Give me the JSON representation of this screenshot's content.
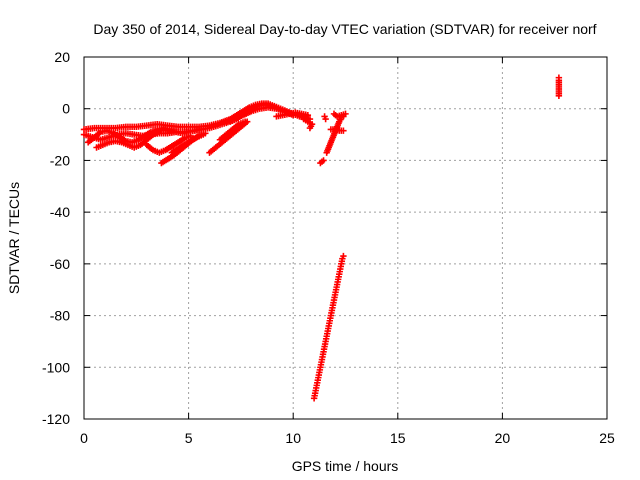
{
  "chart_data": {
    "type": "scatter",
    "title": "Day 350 of 2014, Sidereal Day-to-day VTEC variation (SDTVAR) for receiver norf",
    "xlabel": "GPS time / hours",
    "ylabel": "SDTVAR / TECUs",
    "xlim": [
      0,
      25
    ],
    "ylim": [
      -120,
      20
    ],
    "xticks": [
      "0",
      "5",
      "10",
      "15",
      "20",
      "25"
    ],
    "yticks": [
      "20",
      "0",
      "-20",
      "-40",
      "-60",
      "-80",
      "-100",
      "-120"
    ],
    "grid": true,
    "marker": "plus",
    "color": "#ff0000",
    "series": [
      {
        "segments": [
          [
            [
              0.0,
              -8
            ],
            [
              0.5,
              -7.5
            ],
            [
              1.0,
              -7.5
            ],
            [
              1.5,
              -7.5
            ],
            [
              2.0,
              -7
            ],
            [
              2.5,
              -7
            ],
            [
              3.0,
              -6.5
            ],
            [
              3.5,
              -6
            ],
            [
              4.0,
              -6.5
            ],
            [
              4.5,
              -7
            ],
            [
              5.0,
              -7
            ],
            [
              5.5,
              -7
            ],
            [
              6.0,
              -6.5
            ],
            [
              6.5,
              -5.5
            ],
            [
              7.0,
              -4
            ],
            [
              7.3,
              -2.5
            ],
            [
              7.6,
              -1
            ],
            [
              7.9,
              0.5
            ],
            [
              8.2,
              1.5
            ],
            [
              8.5,
              2
            ],
            [
              8.8,
              2
            ],
            [
              9.1,
              1
            ],
            [
              9.4,
              0
            ],
            [
              9.7,
              -1
            ],
            [
              10.0,
              -2
            ],
            [
              10.3,
              -2.5
            ],
            [
              10.6,
              -3
            ]
          ],
          [
            [
              0.0,
              -10
            ],
            [
              0.4,
              -11
            ],
            [
              0.8,
              -12
            ],
            [
              1.2,
              -11
            ],
            [
              1.6,
              -10
            ],
            [
              2.0,
              -9.5
            ],
            [
              2.4,
              -10
            ],
            [
              2.8,
              -10.5
            ],
            [
              3.2,
              -10
            ],
            [
              3.6,
              -9.5
            ],
            [
              4.0,
              -9.5
            ],
            [
              4.4,
              -9
            ],
            [
              4.8,
              -9
            ],
            [
              5.2,
              -8.5
            ],
            [
              5.6,
              -8
            ],
            [
              6.0,
              -7.5
            ],
            [
              6.4,
              -6.5
            ],
            [
              6.8,
              -5.5
            ],
            [
              7.2,
              -4
            ],
            [
              7.6,
              -2.5
            ],
            [
              8.0,
              -1
            ],
            [
              8.4,
              0
            ],
            [
              8.8,
              0.5
            ],
            [
              9.2,
              0
            ],
            [
              9.6,
              -1
            ],
            [
              10.0,
              -2.5
            ]
          ],
          [
            [
              0.2,
              -13
            ],
            [
              0.5,
              -11
            ],
            [
              0.8,
              -9
            ],
            [
              1.1,
              -8.5
            ],
            [
              1.4,
              -9.5
            ],
            [
              1.7,
              -11
            ],
            [
              2.0,
              -12.5
            ],
            [
              2.3,
              -13
            ],
            [
              2.6,
              -12
            ],
            [
              2.9,
              -10.5
            ],
            [
              3.2,
              -9
            ],
            [
              3.5,
              -8
            ],
            [
              3.8,
              -7.5
            ],
            [
              4.1,
              -8
            ],
            [
              4.4,
              -9
            ],
            [
              4.7,
              -9.5
            ],
            [
              5.0,
              -9
            ],
            [
              5.3,
              -8.5
            ],
            [
              5.6,
              -8
            ]
          ],
          [
            [
              0.6,
              -15
            ],
            [
              0.9,
              -14
            ],
            [
              1.2,
              -13
            ],
            [
              1.5,
              -12.5
            ],
            [
              1.8,
              -13
            ],
            [
              2.1,
              -14
            ],
            [
              2.4,
              -15
            ],
            [
              2.7,
              -14
            ],
            [
              3.0,
              -12
            ],
            [
              3.3,
              -10
            ],
            [
              3.6,
              -8.5
            ],
            [
              3.9,
              -8
            ],
            [
              4.2,
              -9
            ]
          ],
          [
            [
              3.7,
              -21
            ],
            [
              4.0,
              -19.5
            ],
            [
              4.3,
              -18
            ],
            [
              4.6,
              -16
            ],
            [
              4.9,
              -14
            ],
            [
              5.2,
              -12
            ],
            [
              5.5,
              -10.5
            ],
            [
              5.8,
              -9.5
            ]
          ],
          [
            [
              3.0,
              -14
            ],
            [
              3.3,
              -16
            ],
            [
              3.6,
              -17
            ],
            [
              3.9,
              -16
            ],
            [
              4.2,
              -14.5
            ],
            [
              4.5,
              -13
            ],
            [
              4.8,
              -11.5
            ],
            [
              5.1,
              -10.5
            ]
          ],
          [
            [
              4.2,
              -17
            ],
            [
              4.5,
              -15.5
            ],
            [
              4.8,
              -14
            ],
            [
              5.1,
              -12.5
            ],
            [
              5.4,
              -11
            ],
            [
              5.7,
              -10
            ]
          ],
          [
            [
              6.0,
              -17
            ],
            [
              6.3,
              -15
            ],
            [
              6.6,
              -13
            ],
            [
              6.9,
              -11
            ],
            [
              7.2,
              -9
            ],
            [
              7.5,
              -7
            ],
            [
              7.8,
              -5
            ]
          ],
          [
            [
              6.5,
              -12
            ],
            [
              6.8,
              -10
            ],
            [
              7.1,
              -8
            ],
            [
              7.4,
              -6
            ],
            [
              7.7,
              -5
            ]
          ],
          [
            [
              7.0,
              -5
            ],
            [
              7.3,
              -4
            ],
            [
              7.6,
              -2
            ],
            [
              7.9,
              -0.5
            ],
            [
              8.2,
              0.5
            ],
            [
              8.5,
              1.5
            ],
            [
              8.8,
              1.5
            ],
            [
              9.1,
              0.5
            ],
            [
              9.4,
              -0.5
            ],
            [
              9.7,
              -1.5
            ],
            [
              10.0,
              -2
            ],
            [
              10.3,
              -3
            ],
            [
              10.6,
              -3.5
            ],
            [
              10.8,
              -4
            ]
          ],
          [
            [
              9.2,
              -3
            ],
            [
              9.5,
              -2.5
            ],
            [
              9.8,
              -2
            ],
            [
              10.1,
              -1.5
            ],
            [
              10.4,
              -2
            ],
            [
              10.7,
              -2.5
            ]
          ],
          [
            [
              10.5,
              -4
            ],
            [
              10.7,
              -5
            ],
            [
              10.9,
              -6
            ],
            [
              10.8,
              -7.5
            ]
          ],
          [
            [
              11.5,
              -3
            ],
            [
              11.55,
              -4
            ]
          ],
          [
            [
              11.45,
              -20
            ],
            [
              11.3,
              -21
            ]
          ],
          [
            [
              11.6,
              -17
            ],
            [
              11.7,
              -15
            ],
            [
              11.8,
              -13
            ],
            [
              11.9,
              -11
            ],
            [
              12.0,
              -9
            ],
            [
              12.1,
              -7
            ],
            [
              12.2,
              -5
            ],
            [
              12.3,
              -3.5
            ],
            [
              12.4,
              -3
            ]
          ],
          [
            [
              11.8,
              -8
            ],
            [
              12.0,
              -8
            ],
            [
              12.2,
              -8.5
            ],
            [
              12.4,
              -8.5
            ]
          ],
          [
            [
              11.95,
              -2
            ],
            [
              12.1,
              -3
            ],
            [
              12.3,
              -2.5
            ],
            [
              12.5,
              -2
            ]
          ],
          [
            [
              11.0,
              -112
            ],
            [
              11.05,
              -110
            ],
            [
              11.1,
              -108
            ],
            [
              11.15,
              -106
            ],
            [
              11.2,
              -104
            ],
            [
              11.25,
              -102
            ],
            [
              11.3,
              -100
            ],
            [
              11.35,
              -98
            ],
            [
              11.4,
              -96
            ],
            [
              11.45,
              -94
            ],
            [
              11.5,
              -92
            ],
            [
              11.55,
              -90
            ],
            [
              11.6,
              -88
            ],
            [
              11.65,
              -86
            ],
            [
              11.7,
              -84
            ],
            [
              11.75,
              -82
            ],
            [
              11.8,
              -80
            ],
            [
              11.85,
              -78
            ],
            [
              11.9,
              -76
            ],
            [
              11.95,
              -74
            ],
            [
              12.0,
              -72
            ],
            [
              12.05,
              -70
            ],
            [
              12.1,
              -68
            ],
            [
              12.15,
              -66
            ],
            [
              12.2,
              -64
            ],
            [
              12.25,
              -62
            ],
            [
              12.3,
              -60
            ],
            [
              12.35,
              -58
            ],
            [
              12.4,
              -57
            ]
          ],
          [
            [
              22.7,
              5
            ],
            [
              22.7,
              6.5
            ],
            [
              22.7,
              8
            ],
            [
              22.7,
              9.5
            ],
            [
              22.7,
              11
            ],
            [
              22.7,
              12
            ]
          ]
        ]
      }
    ]
  }
}
